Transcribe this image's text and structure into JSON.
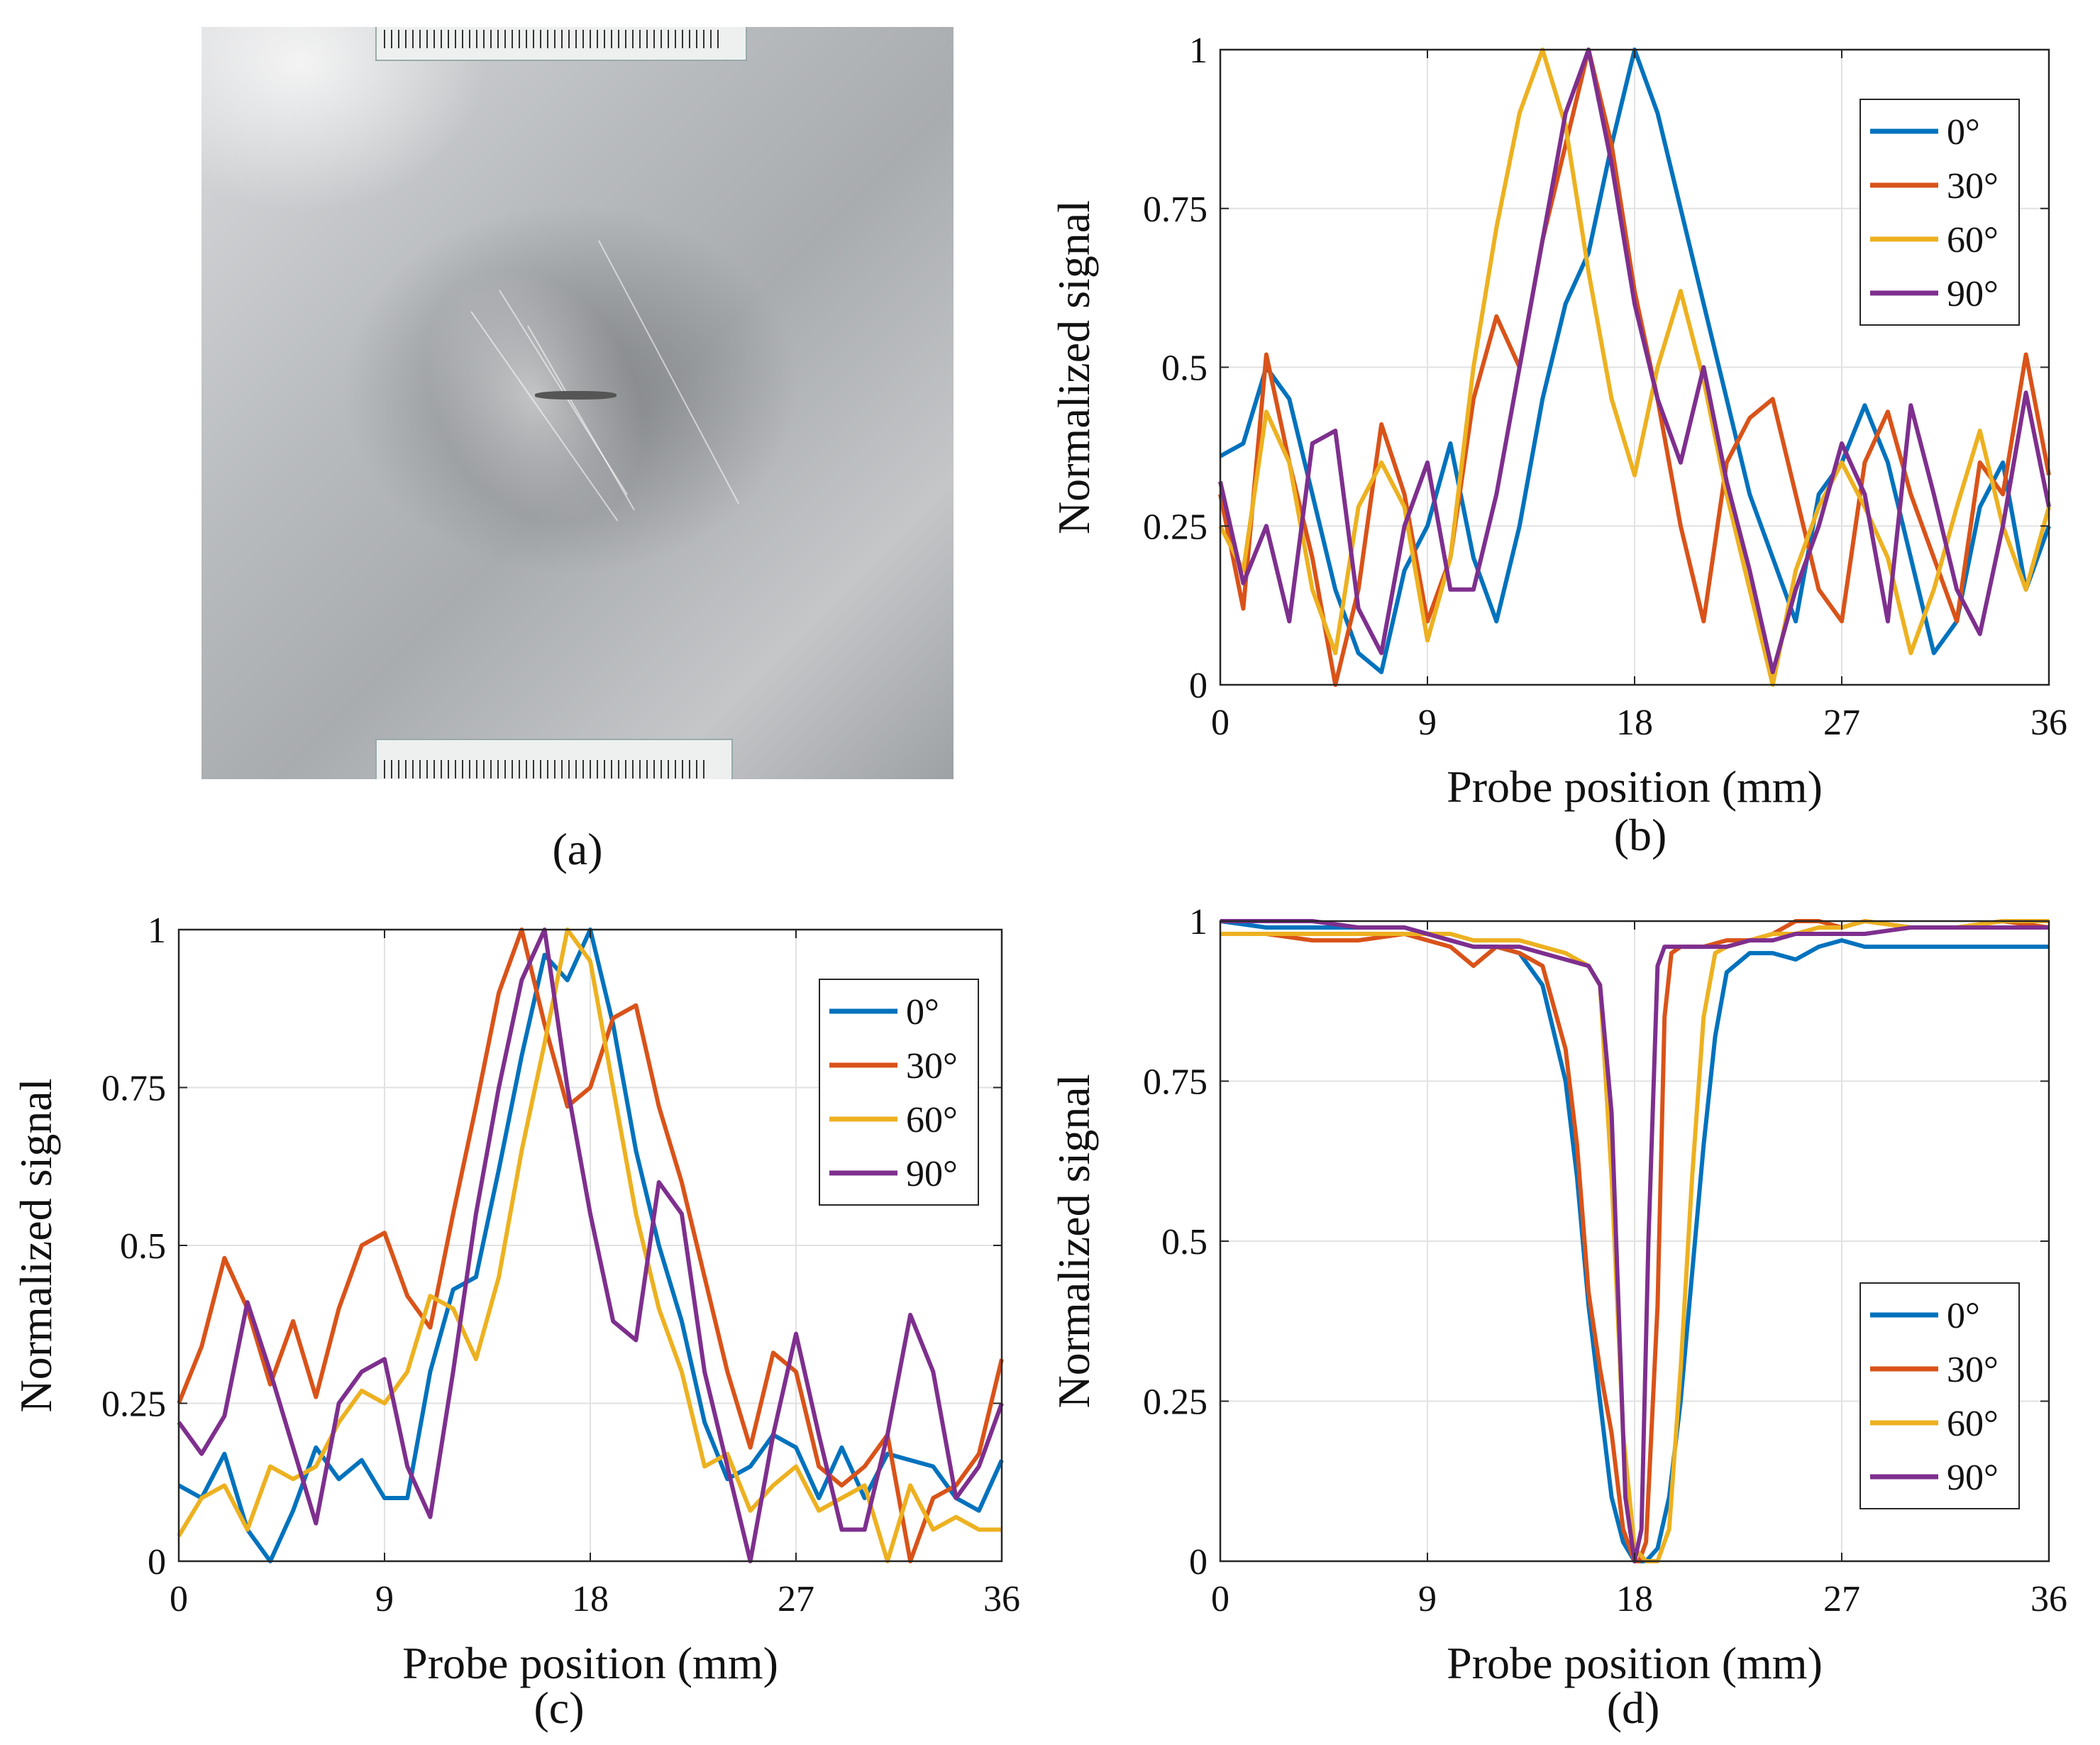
{
  "panel_labels": {
    "a": "(a)",
    "b": "(b)",
    "c": "(c)",
    "d": "(d)"
  },
  "photo": {
    "description_label": "(a)"
  },
  "legend_entries": [
    "0°",
    "30°",
    "60°",
    "90°"
  ],
  "colors": {
    "0°": "#0072BD",
    "30°": "#D95319",
    "60°": "#EDB120",
    "90°": "#7E2F8E"
  },
  "chart_data": [
    {
      "panel": "b",
      "type": "line",
      "xlabel": "Probe position (mm)",
      "ylabel": "Normalized signal",
      "xlim": [
        0,
        36
      ],
      "ylim": [
        0,
        1
      ],
      "xticks": [
        0,
        9,
        18,
        27,
        36
      ],
      "yticks": [
        0,
        0.25,
        0.5,
        0.75,
        1
      ],
      "xtick_labels": [
        "0",
        "9",
        "18",
        "27",
        "36"
      ],
      "ytick_labels": [
        "0",
        "0.25",
        "0.5",
        "0.75",
        "1"
      ],
      "grid": true,
      "legend_position": "top-right",
      "series": [
        {
          "name": "0°",
          "x": [
            0,
            1,
            2,
            3,
            4,
            5,
            6,
            7,
            8,
            9,
            10,
            11,
            12,
            13,
            14,
            15,
            16,
            17,
            18,
            19,
            20,
            21,
            22,
            23,
            24,
            25,
            26,
            27,
            28,
            29,
            30,
            31,
            32,
            33,
            34,
            35,
            36
          ],
          "y": [
            0.36,
            0.38,
            0.5,
            0.45,
            0.3,
            0.15,
            0.05,
            0.02,
            0.18,
            0.25,
            0.38,
            0.2,
            0.1,
            0.25,
            0.45,
            0.6,
            0.68,
            0.85,
            1.0,
            0.9,
            0.75,
            0.6,
            0.45,
            0.3,
            0.2,
            0.1,
            0.3,
            0.35,
            0.44,
            0.35,
            0.2,
            0.05,
            0.1,
            0.28,
            0.35,
            0.15,
            0.25
          ]
        },
        {
          "name": "30°",
          "x": [
            0,
            1,
            2,
            3,
            4,
            5,
            6,
            7,
            8,
            9,
            10,
            11,
            12,
            13,
            14,
            15,
            16,
            17,
            18,
            19,
            20,
            21,
            22,
            23,
            24,
            25,
            26,
            27,
            28,
            29,
            30,
            31,
            32,
            33,
            34,
            35,
            36
          ],
          "y": [
            0.3,
            0.12,
            0.52,
            0.35,
            0.2,
            0.0,
            0.15,
            0.41,
            0.3,
            0.1,
            0.2,
            0.45,
            0.58,
            0.5,
            0.7,
            0.85,
            1.0,
            0.85,
            0.62,
            0.45,
            0.25,
            0.1,
            0.35,
            0.42,
            0.45,
            0.3,
            0.15,
            0.1,
            0.35,
            0.43,
            0.3,
            0.2,
            0.1,
            0.35,
            0.3,
            0.52,
            0.33
          ]
        },
        {
          "name": "60°",
          "x": [
            0,
            1,
            2,
            3,
            4,
            5,
            6,
            7,
            8,
            9,
            10,
            11,
            12,
            13,
            14,
            15,
            16,
            17,
            18,
            19,
            20,
            21,
            22,
            23,
            24,
            25,
            26,
            27,
            28,
            29,
            30,
            31,
            32,
            33,
            34,
            35,
            36
          ],
          "y": [
            0.25,
            0.18,
            0.43,
            0.35,
            0.15,
            0.05,
            0.28,
            0.35,
            0.28,
            0.07,
            0.2,
            0.5,
            0.72,
            0.9,
            1.0,
            0.88,
            0.65,
            0.45,
            0.33,
            0.5,
            0.62,
            0.48,
            0.3,
            0.15,
            0.0,
            0.18,
            0.28,
            0.35,
            0.28,
            0.2,
            0.05,
            0.15,
            0.28,
            0.4,
            0.25,
            0.15,
            0.28
          ]
        },
        {
          "name": "90°",
          "x": [
            0,
            1,
            2,
            3,
            4,
            5,
            6,
            7,
            8,
            9,
            10,
            11,
            12,
            13,
            14,
            15,
            16,
            17,
            18,
            19,
            20,
            21,
            22,
            23,
            24,
            25,
            26,
            27,
            28,
            29,
            30,
            31,
            32,
            33,
            34,
            35,
            36
          ],
          "y": [
            0.32,
            0.16,
            0.25,
            0.1,
            0.38,
            0.4,
            0.12,
            0.05,
            0.25,
            0.35,
            0.15,
            0.15,
            0.3,
            0.5,
            0.7,
            0.9,
            1.0,
            0.82,
            0.6,
            0.45,
            0.35,
            0.5,
            0.32,
            0.18,
            0.02,
            0.15,
            0.25,
            0.38,
            0.3,
            0.1,
            0.44,
            0.3,
            0.15,
            0.08,
            0.25,
            0.46,
            0.28
          ]
        }
      ]
    },
    {
      "panel": "c",
      "type": "line",
      "xlabel": "Probe position (mm)",
      "ylabel": "Normalized signal",
      "xlim": [
        0,
        36
      ],
      "ylim": [
        0,
        1
      ],
      "xticks": [
        0,
        9,
        18,
        27,
        36
      ],
      "yticks": [
        0,
        0.25,
        0.5,
        0.75,
        1
      ],
      "xtick_labels": [
        "0",
        "9",
        "18",
        "27",
        "36"
      ],
      "ytick_labels": [
        "0",
        "0.25",
        "0.5",
        "0.75",
        "1"
      ],
      "grid": true,
      "legend_position": "top-right",
      "series": [
        {
          "name": "0°",
          "x": [
            0,
            1,
            2,
            3,
            4,
            5,
            6,
            7,
            8,
            9,
            10,
            11,
            12,
            13,
            14,
            15,
            16,
            17,
            18,
            19,
            20,
            21,
            22,
            23,
            24,
            25,
            26,
            27,
            28,
            29,
            30,
            31,
            32,
            33,
            34,
            35,
            36
          ],
          "y": [
            0.12,
            0.1,
            0.17,
            0.05,
            0.0,
            0.08,
            0.18,
            0.13,
            0.16,
            0.1,
            0.1,
            0.3,
            0.43,
            0.45,
            0.62,
            0.8,
            0.96,
            0.92,
            1.0,
            0.85,
            0.65,
            0.5,
            0.38,
            0.22,
            0.13,
            0.15,
            0.2,
            0.18,
            0.1,
            0.18,
            0.1,
            0.17,
            0.16,
            0.15,
            0.1,
            0.08,
            0.16
          ]
        },
        {
          "name": "30°",
          "x": [
            0,
            1,
            2,
            3,
            4,
            5,
            6,
            7,
            8,
            9,
            10,
            11,
            12,
            13,
            14,
            15,
            16,
            17,
            18,
            19,
            20,
            21,
            22,
            23,
            24,
            25,
            26,
            27,
            28,
            29,
            30,
            31,
            32,
            33,
            34,
            35,
            36
          ],
          "y": [
            0.25,
            0.34,
            0.48,
            0.4,
            0.28,
            0.38,
            0.26,
            0.4,
            0.5,
            0.52,
            0.42,
            0.37,
            0.55,
            0.72,
            0.9,
            1.0,
            0.85,
            0.72,
            0.75,
            0.86,
            0.88,
            0.72,
            0.6,
            0.45,
            0.3,
            0.18,
            0.33,
            0.3,
            0.15,
            0.12,
            0.15,
            0.2,
            0.0,
            0.1,
            0.12,
            0.17,
            0.32
          ]
        },
        {
          "name": "60°",
          "x": [
            0,
            1,
            2,
            3,
            4,
            5,
            6,
            7,
            8,
            9,
            10,
            11,
            12,
            13,
            14,
            15,
            16,
            17,
            18,
            19,
            20,
            21,
            22,
            23,
            24,
            25,
            26,
            27,
            28,
            29,
            30,
            31,
            32,
            33,
            34,
            35,
            36
          ],
          "y": [
            0.04,
            0.1,
            0.12,
            0.05,
            0.15,
            0.13,
            0.15,
            0.22,
            0.27,
            0.25,
            0.3,
            0.42,
            0.4,
            0.32,
            0.45,
            0.65,
            0.82,
            1.0,
            0.95,
            0.75,
            0.55,
            0.4,
            0.3,
            0.15,
            0.17,
            0.08,
            0.12,
            0.15,
            0.08,
            0.1,
            0.12,
            0.0,
            0.12,
            0.05,
            0.07,
            0.05,
            0.05
          ]
        },
        {
          "name": "90°",
          "x": [
            0,
            1,
            2,
            3,
            4,
            5,
            6,
            7,
            8,
            9,
            10,
            11,
            12,
            13,
            14,
            15,
            16,
            17,
            18,
            19,
            20,
            21,
            22,
            23,
            24,
            25,
            26,
            27,
            28,
            29,
            30,
            31,
            32,
            33,
            34,
            35,
            36
          ],
          "y": [
            0.22,
            0.17,
            0.23,
            0.41,
            0.3,
            0.18,
            0.06,
            0.25,
            0.3,
            0.32,
            0.15,
            0.07,
            0.3,
            0.55,
            0.75,
            0.92,
            1.0,
            0.75,
            0.55,
            0.38,
            0.35,
            0.6,
            0.55,
            0.3,
            0.15,
            0.0,
            0.2,
            0.36,
            0.2,
            0.05,
            0.05,
            0.2,
            0.39,
            0.3,
            0.1,
            0.15,
            0.25
          ]
        }
      ]
    },
    {
      "panel": "d",
      "type": "line",
      "xlabel": "Probe position (mm)",
      "ylabel": "Normalized signal",
      "xlim": [
        0,
        36
      ],
      "ylim": [
        0,
        1
      ],
      "xticks": [
        0,
        9,
        18,
        27,
        36
      ],
      "yticks": [
        0,
        0.25,
        0.5,
        0.75,
        1
      ],
      "xtick_labels": [
        "0",
        "9",
        "18",
        "27",
        "36"
      ],
      "ytick_labels": [
        "0",
        "0.25",
        "0.5",
        "0.75",
        "1"
      ],
      "grid": true,
      "legend_position": "bottom-right",
      "series": [
        {
          "name": "0°",
          "x": [
            0,
            2,
            4,
            6,
            8,
            9,
            10,
            11,
            12,
            13,
            14,
            15,
            15.5,
            16,
            16.5,
            17,
            17.5,
            18,
            18.5,
            19,
            19.5,
            20,
            20.5,
            21,
            21.5,
            22,
            23,
            24,
            25,
            26,
            27,
            28,
            30,
            32,
            34,
            36
          ],
          "y": [
            1.0,
            0.99,
            0.99,
            0.99,
            0.99,
            0.98,
            0.97,
            0.96,
            0.96,
            0.95,
            0.9,
            0.75,
            0.6,
            0.4,
            0.25,
            0.1,
            0.03,
            0.0,
            0.0,
            0.02,
            0.1,
            0.25,
            0.45,
            0.65,
            0.82,
            0.92,
            0.95,
            0.95,
            0.94,
            0.96,
            0.97,
            0.96,
            0.96,
            0.96,
            0.96,
            0.96
          ]
        },
        {
          "name": "30°",
          "x": [
            0,
            2,
            4,
            6,
            8,
            9,
            10,
            11,
            12,
            13,
            14,
            15,
            15.5,
            16,
            16.5,
            17,
            17.5,
            18,
            18.2,
            18.5,
            19,
            19.3,
            19.6,
            20,
            21,
            22,
            23,
            24,
            25,
            26,
            27,
            28,
            30,
            32,
            34,
            36
          ],
          "y": [
            0.98,
            0.98,
            0.97,
            0.97,
            0.98,
            0.97,
            0.96,
            0.93,
            0.96,
            0.95,
            0.93,
            0.8,
            0.65,
            0.42,
            0.3,
            0.2,
            0.05,
            0.0,
            0.0,
            0.03,
            0.4,
            0.85,
            0.95,
            0.96,
            0.96,
            0.97,
            0.97,
            0.98,
            1.0,
            1.0,
            0.99,
            1.0,
            0.99,
            0.99,
            1.0,
            0.99
          ]
        },
        {
          "name": "60°",
          "x": [
            0,
            2,
            4,
            6,
            8,
            9,
            10,
            11,
            12,
            13,
            14,
            15,
            16,
            16.5,
            17,
            17.5,
            18,
            18.5,
            19,
            19.5,
            20,
            20.5,
            21,
            21.5,
            22,
            23,
            24,
            25,
            26,
            27,
            28,
            30,
            32,
            34,
            36
          ],
          "y": [
            0.98,
            0.98,
            0.98,
            0.98,
            0.98,
            0.98,
            0.98,
            0.97,
            0.97,
            0.97,
            0.96,
            0.95,
            0.93,
            0.9,
            0.6,
            0.2,
            0.02,
            0.0,
            0.0,
            0.05,
            0.3,
            0.6,
            0.85,
            0.95,
            0.96,
            0.97,
            0.98,
            0.98,
            0.99,
            0.99,
            1.0,
            0.99,
            0.99,
            1.0,
            1.0
          ]
        },
        {
          "name": "90°",
          "x": [
            0,
            2,
            4,
            6,
            8,
            9,
            10,
            11,
            12,
            13,
            14,
            15,
            16,
            16.5,
            17,
            17.3,
            17.6,
            18,
            18.3,
            18.6,
            19,
            19.3,
            20,
            21,
            22,
            23,
            24,
            25,
            26,
            27,
            28,
            30,
            32,
            34,
            36
          ],
          "y": [
            1.0,
            1.0,
            1.0,
            0.99,
            0.99,
            0.98,
            0.97,
            0.96,
            0.96,
            0.96,
            0.95,
            0.94,
            0.93,
            0.9,
            0.7,
            0.4,
            0.1,
            0.0,
            0.05,
            0.5,
            0.93,
            0.96,
            0.96,
            0.96,
            0.96,
            0.97,
            0.97,
            0.98,
            0.98,
            0.98,
            0.98,
            0.99,
            0.99,
            0.99,
            0.99
          ]
        }
      ]
    }
  ]
}
